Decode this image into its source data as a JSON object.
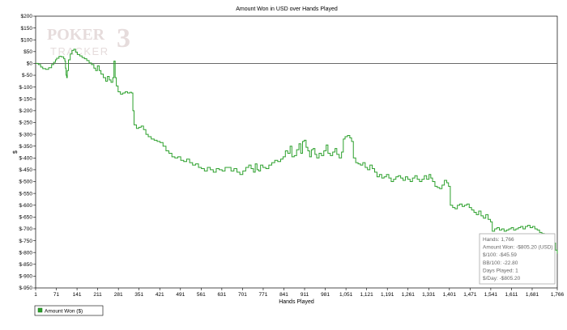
{
  "chart_data": {
    "type": "line",
    "title": "Amount Won in USD over Hands Played",
    "xlabel": "Hands Played",
    "ylabel": "$",
    "xlim": [
      1,
      1766
    ],
    "ylim": [
      -950,
      200
    ],
    "x_ticks": [
      1,
      71,
      141,
      211,
      281,
      351,
      421,
      491,
      561,
      631,
      701,
      771,
      841,
      911,
      981,
      1051,
      1121,
      1191,
      1261,
      1331,
      1401,
      1471,
      1541,
      1611,
      1681,
      1766
    ],
    "x_tick_labels": [
      "1",
      "71",
      "141",
      "211",
      "281",
      "351",
      "421",
      "491",
      "561",
      "631",
      "701",
      "771",
      "841",
      "911",
      "981",
      "1,051",
      "1,121",
      "1,191",
      "1,261",
      "1,331",
      "1,401",
      "1,471",
      "1,541",
      "1,611",
      "1,681",
      "1,766"
    ],
    "y_ticks": [
      200,
      150,
      100,
      50,
      0,
      -50,
      -100,
      -150,
      -200,
      -250,
      -300,
      -350,
      -400,
      -450,
      -500,
      -550,
      -600,
      -650,
      -700,
      -750,
      -800,
      -850,
      -900,
      -950
    ],
    "y_tick_labels": [
      "$200",
      "$150",
      "$100",
      "$50",
      "$0",
      "$-50",
      "$-100",
      "$-150",
      "$-200",
      "$-250",
      "$-300",
      "$-350",
      "$-400",
      "$-450",
      "$-500",
      "$-550",
      "$-600",
      "$-650",
      "$-700",
      "$-750",
      "$-800",
      "$-850",
      "$-900",
      "$-950"
    ],
    "grid": false,
    "legend_position": "bottom-left",
    "series": [
      {
        "name": "Amount Won ($)",
        "color": "#2ca02c",
        "points": [
          [
            1,
            0
          ],
          [
            10,
            -5
          ],
          [
            18,
            -15
          ],
          [
            25,
            -22
          ],
          [
            35,
            -25
          ],
          [
            45,
            -18
          ],
          [
            55,
            -5
          ],
          [
            62,
            5
          ],
          [
            68,
            15
          ],
          [
            72,
            22
          ],
          [
            80,
            30
          ],
          [
            88,
            28
          ],
          [
            96,
            20
          ],
          [
            100,
            10
          ],
          [
            102,
            -20
          ],
          [
            104,
            -50
          ],
          [
            106,
            -60
          ],
          [
            108,
            -30
          ],
          [
            112,
            15
          ],
          [
            118,
            40
          ],
          [
            124,
            55
          ],
          [
            130,
            60
          ],
          [
            136,
            48
          ],
          [
            142,
            38
          ],
          [
            150,
            32
          ],
          [
            158,
            25
          ],
          [
            166,
            20
          ],
          [
            174,
            12
          ],
          [
            182,
            2
          ],
          [
            190,
            -5
          ],
          [
            198,
            -20
          ],
          [
            204,
            -30
          ],
          [
            210,
            -10
          ],
          [
            216,
            -30
          ],
          [
            222,
            -45
          ],
          [
            230,
            -60
          ],
          [
            238,
            -75
          ],
          [
            244,
            -55
          ],
          [
            250,
            -70
          ],
          [
            256,
            -80
          ],
          [
            262,
            -60
          ],
          [
            266,
            10
          ],
          [
            270,
            -60
          ],
          [
            274,
            -95
          ],
          [
            280,
            -120
          ],
          [
            288,
            -130
          ],
          [
            296,
            -125
          ],
          [
            304,
            -120
          ],
          [
            312,
            -125
          ],
          [
            320,
            -122
          ],
          [
            326,
            -125
          ],
          [
            330,
            -200
          ],
          [
            334,
            -260
          ],
          [
            342,
            -275
          ],
          [
            350,
            -270
          ],
          [
            358,
            -265
          ],
          [
            366,
            -280
          ],
          [
            374,
            -300
          ],
          [
            382,
            -310
          ],
          [
            392,
            -320
          ],
          [
            402,
            -325
          ],
          [
            412,
            -330
          ],
          [
            422,
            -335
          ],
          [
            432,
            -350
          ],
          [
            442,
            -370
          ],
          [
            452,
            -380
          ],
          [
            462,
            -395
          ],
          [
            472,
            -400
          ],
          [
            482,
            -395
          ],
          [
            492,
            -410
          ],
          [
            502,
            -415
          ],
          [
            512,
            -405
          ],
          [
            522,
            -420
          ],
          [
            532,
            -430
          ],
          [
            542,
            -425
          ],
          [
            552,
            -440
          ],
          [
            562,
            -445
          ],
          [
            572,
            -455
          ],
          [
            582,
            -440
          ],
          [
            592,
            -450
          ],
          [
            602,
            -460
          ],
          [
            612,
            -445
          ],
          [
            622,
            -450
          ],
          [
            632,
            -455
          ],
          [
            642,
            -440
          ],
          [
            652,
            -440
          ],
          [
            662,
            -455
          ],
          [
            672,
            -445
          ],
          [
            682,
            -460
          ],
          [
            692,
            -470
          ],
          [
            702,
            -455
          ],
          [
            712,
            -440
          ],
          [
            722,
            -430
          ],
          [
            730,
            -445
          ],
          [
            738,
            -460
          ],
          [
            744,
            -425
          ],
          [
            750,
            -450
          ],
          [
            756,
            -455
          ],
          [
            762,
            -430
          ],
          [
            770,
            -440
          ],
          [
            780,
            -445
          ],
          [
            790,
            -430
          ],
          [
            800,
            -420
          ],
          [
            810,
            -410
          ],
          [
            820,
            -415
          ],
          [
            830,
            -405
          ],
          [
            838,
            -395
          ],
          [
            846,
            -370
          ],
          [
            854,
            -380
          ],
          [
            862,
            -350
          ],
          [
            868,
            -395
          ],
          [
            876,
            -390
          ],
          [
            884,
            -365
          ],
          [
            892,
            -340
          ],
          [
            898,
            -380
          ],
          [
            904,
            -330
          ],
          [
            910,
            -325
          ],
          [
            916,
            -355
          ],
          [
            922,
            -370
          ],
          [
            928,
            -395
          ],
          [
            934,
            -365
          ],
          [
            940,
            -360
          ],
          [
            946,
            -385
          ],
          [
            952,
            -400
          ],
          [
            960,
            -380
          ],
          [
            968,
            -390
          ],
          [
            976,
            -370
          ],
          [
            984,
            -345
          ],
          [
            990,
            -380
          ],
          [
            998,
            -390
          ],
          [
            1006,
            -375
          ],
          [
            1014,
            -360
          ],
          [
            1020,
            -385
          ],
          [
            1028,
            -400
          ],
          [
            1036,
            -375
          ],
          [
            1042,
            -320
          ],
          [
            1048,
            -310
          ],
          [
            1056,
            -305
          ],
          [
            1064,
            -315
          ],
          [
            1070,
            -330
          ],
          [
            1076,
            -400
          ],
          [
            1084,
            -420
          ],
          [
            1092,
            -425
          ],
          [
            1100,
            -430
          ],
          [
            1108,
            -420
          ],
          [
            1116,
            -440
          ],
          [
            1124,
            -450
          ],
          [
            1132,
            -430
          ],
          [
            1140,
            -445
          ],
          [
            1148,
            -460
          ],
          [
            1156,
            -480
          ],
          [
            1164,
            -470
          ],
          [
            1172,
            -485
          ],
          [
            1180,
            -480
          ],
          [
            1188,
            -470
          ],
          [
            1196,
            -485
          ],
          [
            1204,
            -500
          ],
          [
            1212,
            -490
          ],
          [
            1220,
            -480
          ],
          [
            1228,
            -475
          ],
          [
            1236,
            -485
          ],
          [
            1244,
            -495
          ],
          [
            1252,
            -480
          ],
          [
            1260,
            -490
          ],
          [
            1268,
            -500
          ],
          [
            1276,
            -485
          ],
          [
            1284,
            -475
          ],
          [
            1292,
            -490
          ],
          [
            1300,
            -500
          ],
          [
            1308,
            -490
          ],
          [
            1316,
            -475
          ],
          [
            1324,
            -490
          ],
          [
            1332,
            -470
          ],
          [
            1338,
            -485
          ],
          [
            1344,
            -500
          ],
          [
            1352,
            -520
          ],
          [
            1360,
            -525
          ],
          [
            1368,
            -530
          ],
          [
            1376,
            -515
          ],
          [
            1384,
            -495
          ],
          [
            1392,
            -505
          ],
          [
            1398,
            -520
          ],
          [
            1404,
            -600
          ],
          [
            1412,
            -610
          ],
          [
            1420,
            -615
          ],
          [
            1428,
            -600
          ],
          [
            1436,
            -595
          ],
          [
            1444,
            -605
          ],
          [
            1452,
            -600
          ],
          [
            1460,
            -595
          ],
          [
            1468,
            -610
          ],
          [
            1476,
            -620
          ],
          [
            1484,
            -630
          ],
          [
            1492,
            -640
          ],
          [
            1500,
            -625
          ],
          [
            1508,
            -645
          ],
          [
            1516,
            -655
          ],
          [
            1524,
            -640
          ],
          [
            1532,
            -660
          ],
          [
            1540,
            -670
          ],
          [
            1546,
            -710
          ],
          [
            1554,
            -700
          ],
          [
            1562,
            -695
          ],
          [
            1570,
            -705
          ],
          [
            1578,
            -700
          ],
          [
            1586,
            -710
          ],
          [
            1594,
            -705
          ],
          [
            1602,
            -700
          ],
          [
            1610,
            -695
          ],
          [
            1618,
            -705
          ],
          [
            1626,
            -700
          ],
          [
            1634,
            -695
          ],
          [
            1642,
            -690
          ],
          [
            1650,
            -700
          ],
          [
            1658,
            -690
          ],
          [
            1666,
            -685
          ],
          [
            1674,
            -695
          ],
          [
            1682,
            -690
          ],
          [
            1690,
            -700
          ],
          [
            1698,
            -705
          ],
          [
            1706,
            -715
          ],
          [
            1714,
            -720
          ],
          [
            1722,
            -730
          ],
          [
            1730,
            -725
          ],
          [
            1740,
            -745
          ],
          [
            1750,
            -760
          ],
          [
            1760,
            -790
          ],
          [
            1766,
            -805
          ]
        ]
      }
    ],
    "zero_line": 0,
    "tooltip": {
      "lines": [
        "Hands: 1,766",
        "Amount Won: -$805.20 (USD)",
        "$/100: -$45.59",
        "BB/100: -22.80",
        "Days Played: 1",
        "$/Day: -$805.20"
      ]
    },
    "watermark": {
      "line1": "POKER",
      "line2": "TRACKER",
      "mark": "3"
    }
  }
}
